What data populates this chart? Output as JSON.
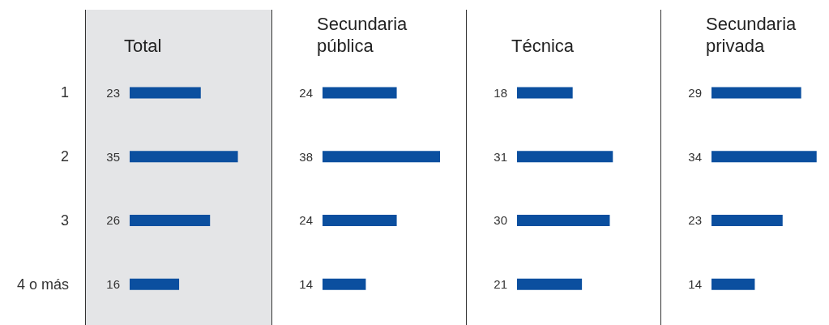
{
  "chart_data": [
    {
      "type": "bar",
      "orientation": "horizontal",
      "title": "Total",
      "categories": [
        "1",
        "2",
        "3",
        "4 o más"
      ],
      "values": [
        23,
        35,
        26,
        16
      ],
      "color": "#0b4f9f",
      "data_labels": true
    },
    {
      "type": "bar",
      "orientation": "horizontal",
      "title": "Secundaria pública",
      "categories": [
        null,
        null,
        null,
        null
      ],
      "values": [
        24,
        38,
        24,
        14
      ],
      "color": "#0b4f9f",
      "data_labels": true
    },
    {
      "type": "bar",
      "orientation": "horizontal",
      "title": "Técnica",
      "categories": [
        null,
        null,
        null,
        null
      ],
      "values": [
        18,
        31,
        30,
        21
      ],
      "color": "#0b4f9f",
      "data_labels": true
    },
    {
      "type": "bar",
      "orientation": "horizontal",
      "title": "Secundaria privada",
      "categories": [
        null,
        null,
        null,
        null
      ],
      "values": [
        29,
        34,
        23,
        14
      ],
      "color": "#0b4f9f",
      "data_labels": true
    }
  ]
}
